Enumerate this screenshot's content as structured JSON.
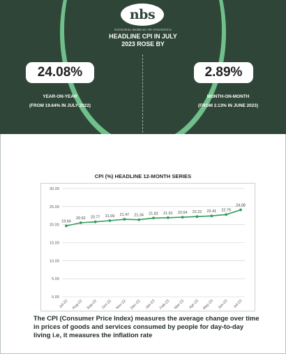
{
  "header": {
    "logo_text": "nbs",
    "bureau_name": "NATIONAL BUREAU OF STATISTICS",
    "headline_line1": "HEADLINE CPI IN JULY",
    "headline_line2": "2023 ROSE BY",
    "colors": {
      "background": "#2f4538",
      "accent": "#6fc08a"
    }
  },
  "yoy": {
    "value": "24.08%",
    "label_line1": "YEAR-ON-YEAR",
    "label_line2": "(FROM 19.64% IN JULY 2022)"
  },
  "mom": {
    "value": "2.89%",
    "label_line1": "MONTH-ON-MONTH",
    "label_line2": "(FROM 2.13% IN JUNE 2023)"
  },
  "chart_data": {
    "type": "line",
    "title": "CPI (%)  HEADLINE 12-MONTH SERIES",
    "categories": [
      "Jul-22",
      "Aug-22",
      "Sep-22",
      "Oct-22",
      "Nov-22",
      "Dec-22",
      "Jan-23",
      "Feb-23",
      "Mar-23",
      "Apr-23",
      "May-23",
      "Jun-23",
      "Jul-23"
    ],
    "values": [
      19.64,
      20.52,
      20.77,
      21.09,
      21.47,
      21.34,
      21.82,
      21.91,
      22.04,
      22.22,
      22.41,
      22.79,
      24.08
    ],
    "value_labels": [
      "19.64",
      "20.52",
      "20.77",
      "21.09",
      "21.47",
      "21.34",
      "21.82",
      "21.91",
      "22.04",
      "22.22",
      "22.41",
      "22.79",
      "24.08"
    ],
    "ylim": [
      0,
      30
    ],
    "yticks": [
      "0.00",
      "5.00",
      "10.00",
      "15.00",
      "20.00",
      "25.00",
      "30.00"
    ],
    "grid": true,
    "line_color": "#2e9c58"
  },
  "footer": {
    "text": "The CPI (Consumer Price Index) measures the average change over time in prices of goods and services consumed by people for day-to-day living i.e, it measures the inflation rate"
  }
}
